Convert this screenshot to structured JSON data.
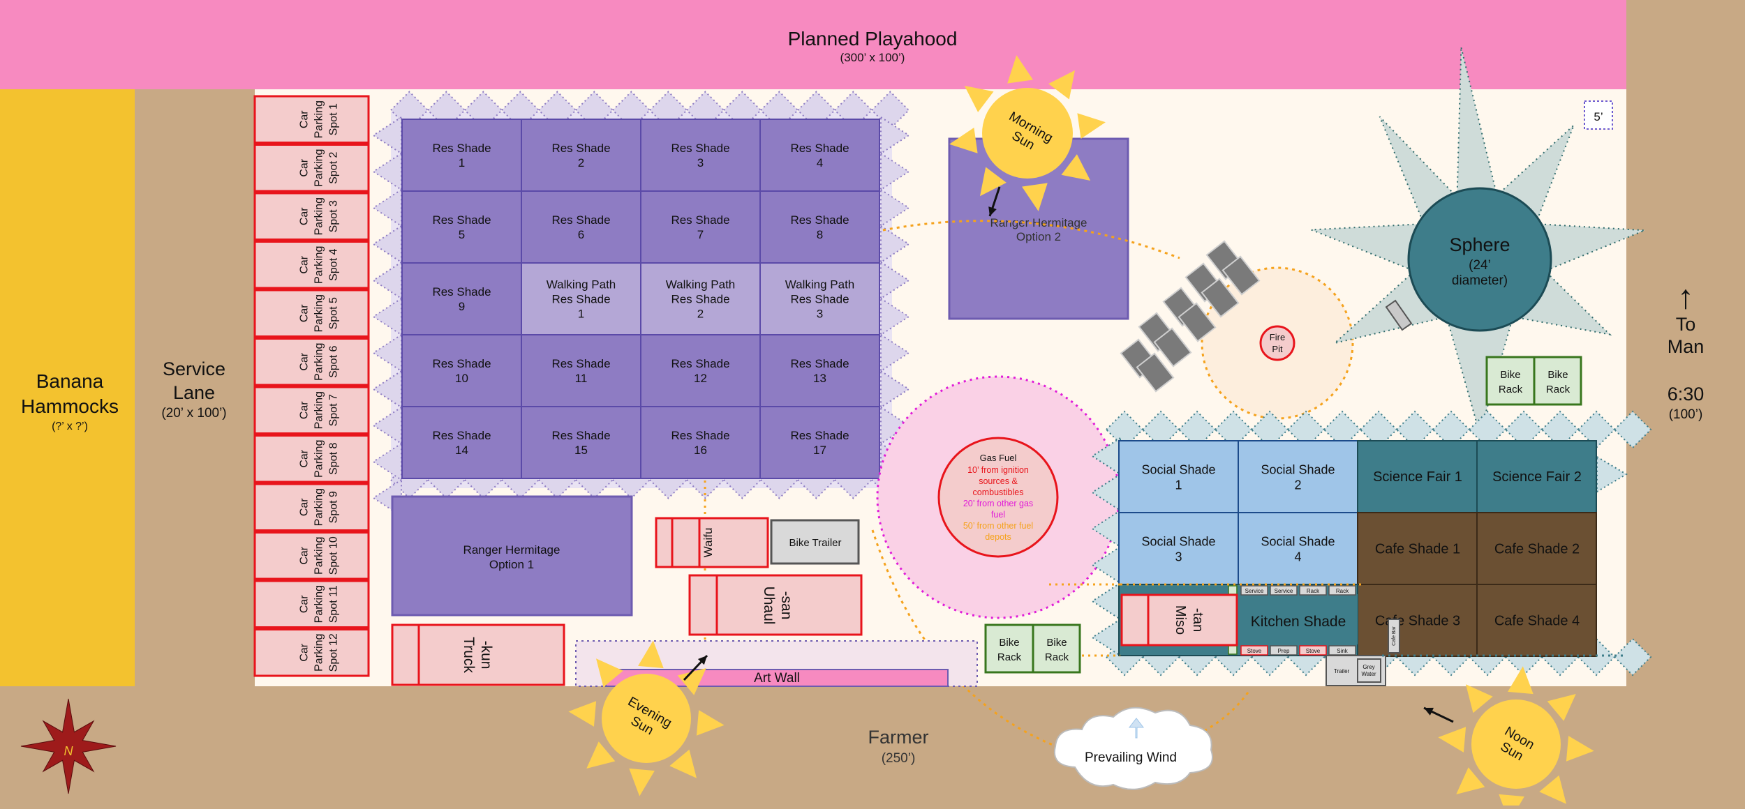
{
  "map": {
    "playahood": {
      "title": "Planned Playahood",
      "sub": "(300’ x 100’)"
    },
    "banana": {
      "title_1": "Banana",
      "title_2": "Hammocks",
      "sub": "(?’ x ?’)"
    },
    "service_lane": {
      "title_1": "Service",
      "title_2": "Lane",
      "sub": "(20’ x 100’)"
    },
    "to_man": {
      "arrow": "↑",
      "line_1": "To",
      "line_2": "Man",
      "street": "6:30",
      "sub": "(100’)"
    },
    "farmer": {
      "title": "Farmer",
      "sub": "(250’)"
    },
    "scale_box": "5’",
    "parking": [
      [
        "Car",
        "Parking",
        "Spot 1"
      ],
      [
        "Car",
        "Parking",
        "Spot 2"
      ],
      [
        "Car",
        "Parking",
        "Spot 3"
      ],
      [
        "Car",
        "Parking",
        "Spot 4"
      ],
      [
        "Car",
        "Parking",
        "Spot 5"
      ],
      [
        "Car",
        "Parking",
        "Spot 6"
      ],
      [
        "Car",
        "Parking",
        "Spot 7"
      ],
      [
        "Car",
        "Parking",
        "Spot 8"
      ],
      [
        "Car",
        "Parking",
        "Spot 9"
      ],
      [
        "Car",
        "Parking",
        "Spot 10"
      ],
      [
        "Car",
        "Parking",
        "Spot 11"
      ],
      [
        "Car",
        "Parking",
        "Spot 12"
      ]
    ],
    "res_grid": [
      [
        "Res Shade",
        "1"
      ],
      [
        "Res Shade",
        "2"
      ],
      [
        "Res Shade",
        "3"
      ],
      [
        "Res Shade",
        "4"
      ],
      [
        "Res Shade",
        "5"
      ],
      [
        "Res Shade",
        "6"
      ],
      [
        "Res Shade",
        "7"
      ],
      [
        "Res Shade",
        "8"
      ],
      [
        "Res Shade",
        "9"
      ],
      [
        "Walking Path",
        "Res Shade",
        "1"
      ],
      [
        "Walking Path",
        "Res Shade",
        "2"
      ],
      [
        "Walking Path",
        "Res Shade",
        "3"
      ],
      [
        "Res Shade",
        "10"
      ],
      [
        "Res Shade",
        "11"
      ],
      [
        "Res Shade",
        "12"
      ],
      [
        "Res Shade",
        "13"
      ],
      [
        "Res Shade",
        "14"
      ],
      [
        "Res Shade",
        "15"
      ],
      [
        "Res Shade",
        "16"
      ],
      [
        "Res Shade",
        "17"
      ]
    ],
    "ranger1": [
      "Ranger Hermitage",
      "Option 1"
    ],
    "ranger2": [
      "Ranger Hermitage",
      "Option 2"
    ],
    "morning_sun": [
      "Morning",
      "Sun"
    ],
    "evening_sun": [
      "Evening",
      "Sun"
    ],
    "noon_sun": [
      "Noon",
      "Sun"
    ],
    "sphere": {
      "title": "Sphere",
      "sub_1": "(24’",
      "sub_2": "diameter)"
    },
    "fire_pit": [
      "Fire",
      "Pit"
    ],
    "gas_fuel": {
      "title": "Gas Fuel",
      "red_1": "10’ from ignition",
      "red_2": "sources &",
      "red_3": "combustibles",
      "mag_1": "20’ from other gas",
      "mag_2": "fuel",
      "org_1": "50’ from other fuel",
      "org_2": "depots",
      "colors": {
        "red": "#e8141b",
        "magenta": "#e01bd8",
        "orange": "#f5a21c"
      }
    },
    "vehicles": {
      "waifu": "Waifu",
      "bike_trailer": "Bike Trailer",
      "uhaul": [
        "Uhaul",
        "-san"
      ],
      "truck": [
        "Truck",
        "-kun"
      ],
      "miso": [
        "Miso",
        "-tan"
      ]
    },
    "art_wall": "Art Wall",
    "bike_racks": [
      [
        "Bike",
        "Rack"
      ],
      [
        "Bike",
        "Rack"
      ],
      [
        "Bike",
        "Rack"
      ],
      [
        "Bike",
        "Rack"
      ]
    ],
    "social": [
      [
        "Social Shade",
        "1"
      ],
      [
        "Social Shade",
        "2"
      ],
      [
        "Social Shade",
        "3"
      ],
      [
        "Social Shade",
        "4"
      ]
    ],
    "science": [
      "Science Fair 1",
      "Science Fair 2"
    ],
    "cafe": [
      "Cafe Shade 1",
      "Cafe Shade 2",
      "Cafe Shade 3",
      "Cafe Shade 4"
    ],
    "kitchen": "Kitchen Shade",
    "kitchen_top": [
      "Service",
      "Service",
      "Rack",
      "Rack"
    ],
    "kitchen_bottom": [
      "Stove",
      "Prep",
      "Stove",
      "Sink"
    ],
    "trailer": "Trailer",
    "grey_water": [
      "Grey",
      "Water"
    ],
    "cafe_bar": "Cafe Bar",
    "prevailing_wind": "Prevailing Wind",
    "compass_letter": "N",
    "colors": {
      "pink_band": "#f78ac0",
      "ground": "#c8a985",
      "camp": "#fff8ee",
      "banana": "#f3c22f",
      "purple": "#8e7cc3",
      "light_purple": "#b4a7d6",
      "teal": "#3e7d8a",
      "brown": "#6b5033",
      "light_blue": "#9fc5e8",
      "parking_fill": "#f4cccc",
      "parking_border": "#e8141b",
      "sun": "#ffd24d"
    }
  }
}
